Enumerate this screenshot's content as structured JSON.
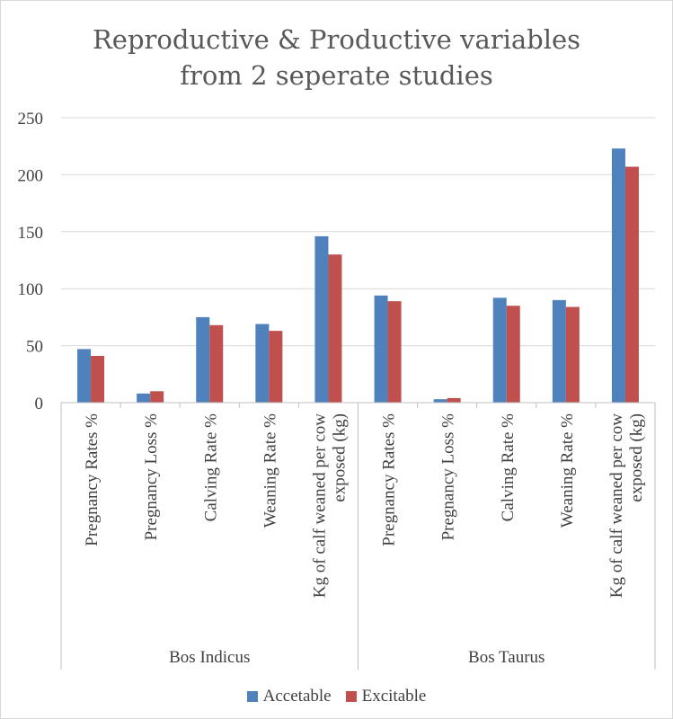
{
  "chart_data": {
    "type": "bar",
    "title_lines": [
      "Reproductive & Productive variables",
      "from 2 seperate studies"
    ],
    "ylim": [
      0,
      250
    ],
    "yticks": [
      0,
      50,
      100,
      150,
      200,
      250
    ],
    "groups": [
      {
        "name": "Bos Indicus",
        "categories": [
          "Pregnancy Rates %",
          "Pregnancy Loss %",
          "Calving Rate %",
          "Weaning Rate %",
          "Kg of calf weaned per cow exposed (kg)"
        ]
      },
      {
        "name": "Bos Taurus",
        "categories": [
          "Pregnancy Rates %",
          "Pregnancy Loss %",
          "Calving Rate %",
          "Weaning Rate %",
          "Kg of calf weaned per cow exposed (kg)"
        ]
      }
    ],
    "series": [
      {
        "name": "Accetable",
        "color": "#4f81bd",
        "values": [
          47,
          8,
          75,
          69,
          146,
          94,
          3,
          92,
          90,
          223
        ]
      },
      {
        "name": "Excitable",
        "color": "#c0504d",
        "values": [
          41,
          10,
          68,
          63,
          130,
          89,
          4,
          85,
          84,
          207
        ]
      }
    ],
    "grid": true,
    "legend_position": "bottom"
  }
}
